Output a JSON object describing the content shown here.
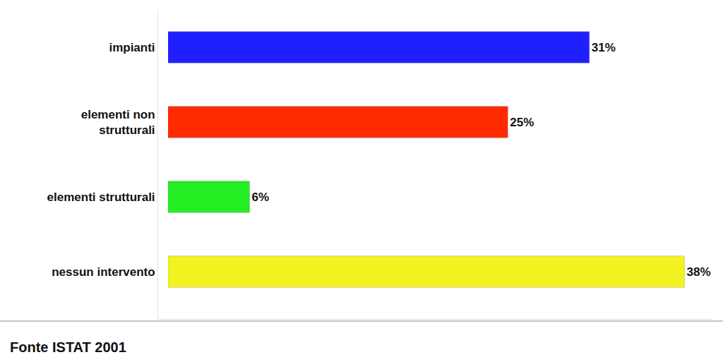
{
  "chart_data": {
    "type": "bar",
    "orientation": "horizontal",
    "categories": [
      "impianti",
      "elementi non strutturali",
      "elementi strutturali",
      "nessun intervento"
    ],
    "values": [
      31,
      25,
      6,
      38
    ],
    "value_labels": [
      "31%",
      "25%",
      "6%",
      "38%"
    ],
    "colors": [
      "#2020ff",
      "#ff2a00",
      "#22ee22",
      "#f2f220"
    ],
    "xlim": [
      0,
      40
    ],
    "data_labels": true,
    "tick_labels": "y",
    "grid": false,
    "annotations": [
      "Fonte ISTAT 2001"
    ]
  }
}
